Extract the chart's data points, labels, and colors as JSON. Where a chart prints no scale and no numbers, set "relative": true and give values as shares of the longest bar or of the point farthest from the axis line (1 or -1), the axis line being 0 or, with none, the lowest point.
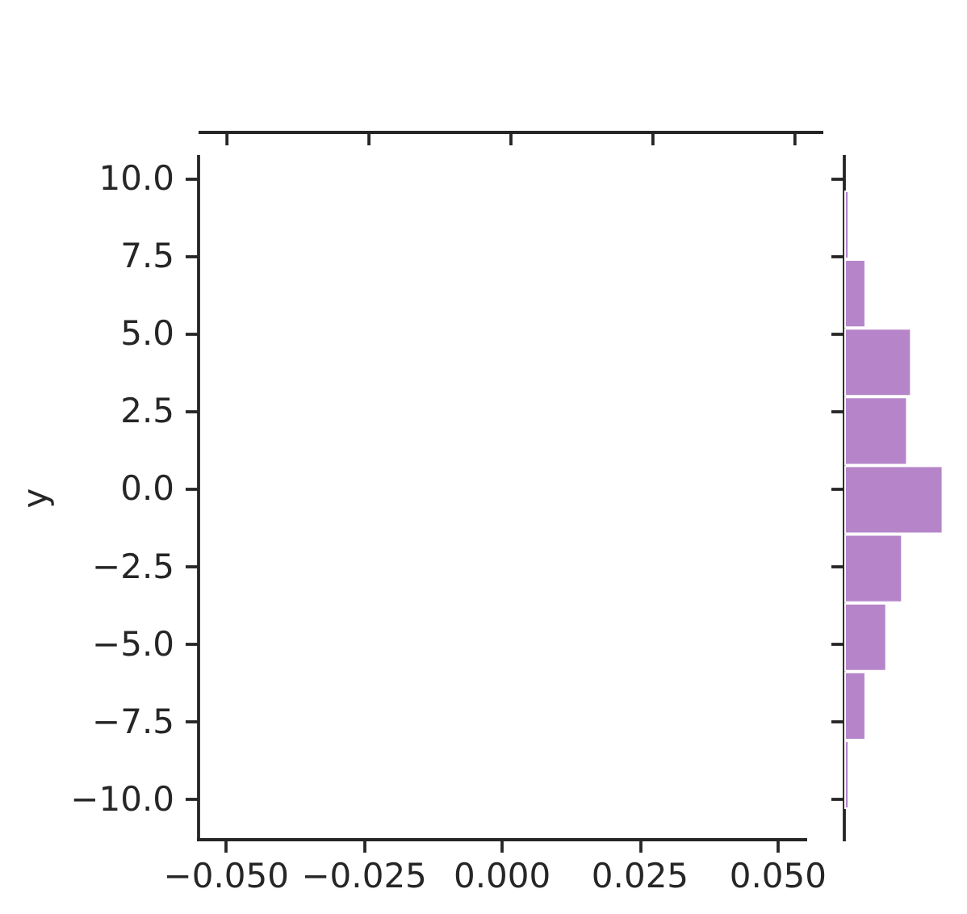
{
  "chart_data": [
    {
      "type": "scatter",
      "ylabel": "y",
      "xlim": [
        -0.055,
        0.055
      ],
      "xticks": [
        {
          "value": -0.05,
          "label": "−0.050"
        },
        {
          "value": -0.025,
          "label": "−0.025"
        },
        {
          "value": 0,
          "label": "0.000"
        },
        {
          "value": 0.025,
          "label": "0.025"
        },
        {
          "value": 0.05,
          "label": "0.050"
        }
      ],
      "ylim": [
        -11.3,
        10.7
      ],
      "yticks": [
        {
          "value": -10,
          "label": "−10.0"
        },
        {
          "value": -7.5,
          "label": "−7.5"
        },
        {
          "value": -5,
          "label": "−5.0"
        },
        {
          "value": -2.5,
          "label": "−2.5"
        },
        {
          "value": 0,
          "label": "0.0"
        },
        {
          "value": 2.5,
          "label": "2.5"
        },
        {
          "value": 5,
          "label": "5.0"
        },
        {
          "value": 7.5,
          "label": "7.5"
        },
        {
          "value": 10,
          "label": "10.0"
        }
      ]
    },
    {
      "type": "bar",
      "orientation": "horizontal",
      "relative": true,
      "color": "#b685c9",
      "categories": [
        null,
        null,
        null,
        null,
        null,
        null,
        null,
        null,
        null
      ],
      "values": [
        0.05,
        0.22,
        0.68,
        0.64,
        1,
        0.59,
        0.43,
        0.22,
        0.05
      ]
    }
  ]
}
